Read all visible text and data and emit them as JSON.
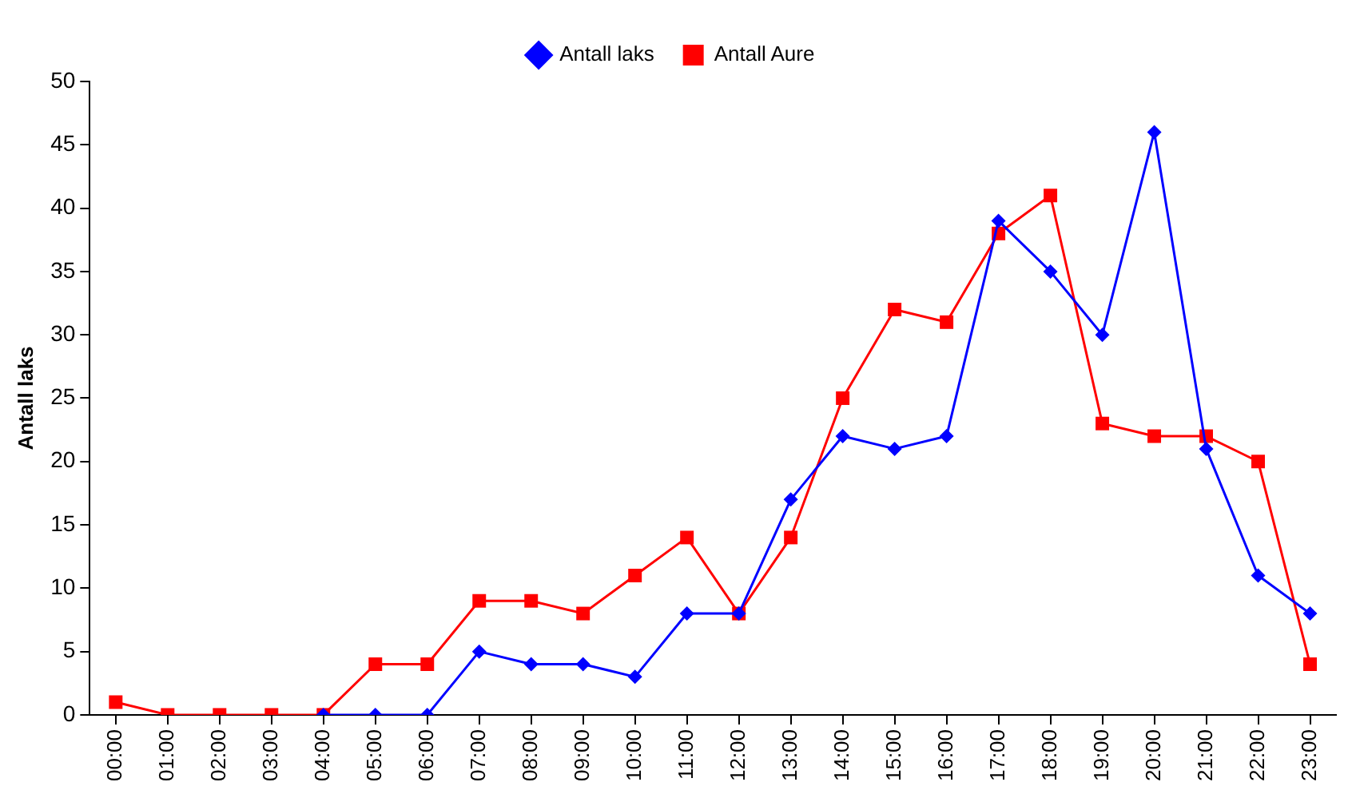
{
  "chart_data": {
    "type": "line",
    "ylabel": "Antall laks",
    "categories": [
      "00:00",
      "01:00",
      "02:00",
      "03:00",
      "04:00",
      "05:00",
      "06:00",
      "07:00",
      "08:00",
      "09:00",
      "10:00",
      "11:00",
      "12:00",
      "13:00",
      "14:00",
      "15:00",
      "16:00",
      "17:00",
      "18:00",
      "19:00",
      "20:00",
      "21:00",
      "22:00",
      "23:00"
    ],
    "series": [
      {
        "name": "Antall laks",
        "color": "#0000ff",
        "marker": "diamond",
        "values": [
          null,
          null,
          null,
          null,
          0,
          0,
          0,
          5,
          4,
          4,
          3,
          8,
          8,
          17,
          22,
          21,
          22,
          39,
          35,
          30,
          46,
          21,
          11,
          8
        ]
      },
      {
        "name": "Antall Aure",
        "color": "#ff0000",
        "marker": "square",
        "values": [
          1,
          0,
          0,
          0,
          0,
          4,
          4,
          9,
          9,
          8,
          11,
          14,
          8,
          14,
          25,
          32,
          31,
          38,
          41,
          23,
          22,
          22,
          20,
          4
        ]
      }
    ],
    "ylim": [
      0,
      50
    ],
    "yticks": [
      0,
      5,
      10,
      15,
      20,
      25,
      30,
      35,
      40,
      45,
      50
    ],
    "grid": false,
    "legend": "top"
  }
}
